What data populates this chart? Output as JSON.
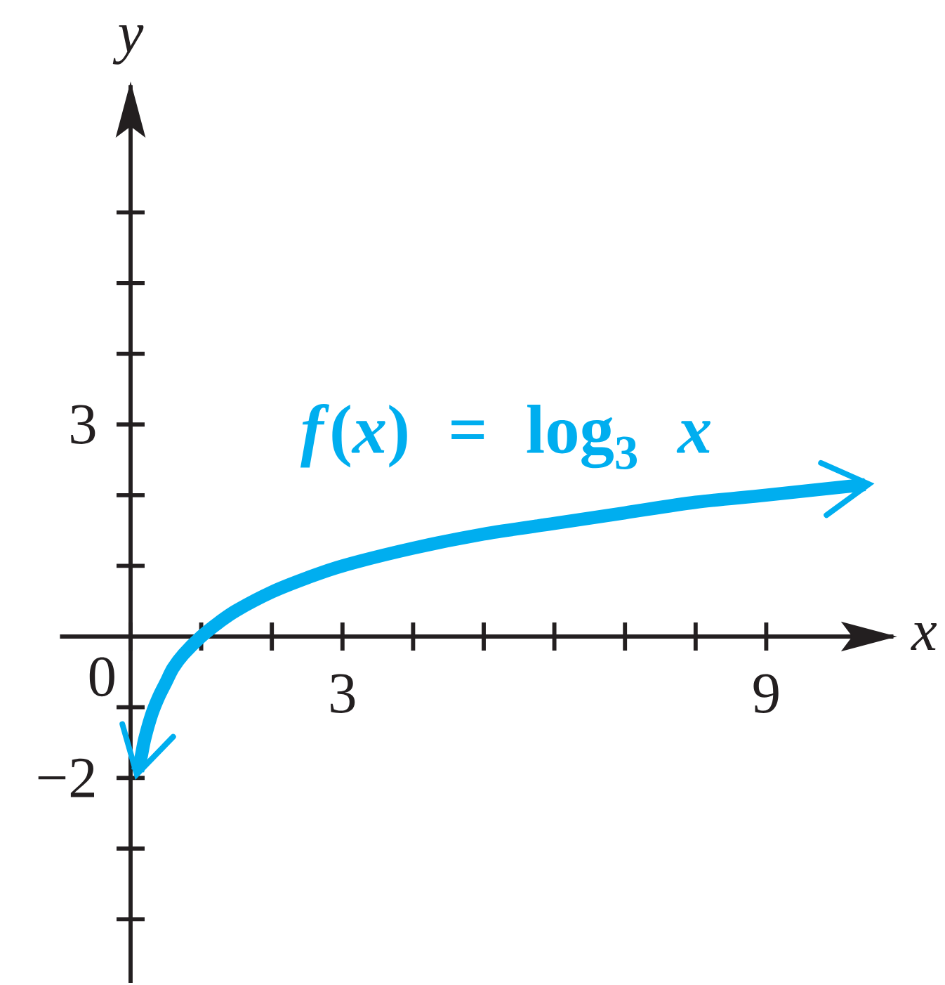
{
  "chart_data": {
    "type": "line",
    "xlabel": "x",
    "ylabel": "y",
    "x": [
      0.1,
      0.15,
      0.2,
      0.3,
      0.4,
      0.5,
      0.6,
      0.75,
      1,
      1.25,
      1.5,
      2,
      2.5,
      3,
      4,
      5,
      6,
      7,
      8,
      9,
      10.4
    ],
    "series": [
      {
        "name": "*f*(*x*) = log$_{3}$ *x*",
        "color": "#00aeef",
        "values": [
          -1.9,
          -1.7,
          -1.45,
          -1.1,
          -0.85,
          -0.65,
          -0.45,
          -0.25,
          0,
          0.2,
          0.37,
          0.63,
          0.83,
          1,
          1.25,
          1.45,
          1.6,
          1.75,
          1.9,
          2,
          2.15
        ]
      }
    ],
    "xlim": [
      -1,
      10.8
    ],
    "ylim": [
      -4.9,
      7.8
    ],
    "xticks": [
      0,
      {
        "value": 1,
        "label": null
      },
      {
        "value": 2,
        "label": null
      },
      3,
      {
        "value": 4,
        "label": null
      },
      {
        "value": 5,
        "label": null
      },
      {
        "value": 6,
        "label": null
      },
      {
        "value": 7,
        "label": null
      },
      {
        "value": 8,
        "label": null
      },
      9
    ],
    "yticks": [
      {
        "value": -4,
        "label": null
      },
      {
        "value": -3,
        "label": null
      },
      {
        "value": -2,
        "label": "−2"
      },
      {
        "value": -1,
        "label": null
      },
      {
        "value": 1,
        "label": null
      },
      {
        "value": 2,
        "label": null
      },
      3,
      {
        "value": 4,
        "label": null
      },
      {
        "value": 5,
        "label": null
      },
      {
        "value": 6,
        "label": null
      }
    ],
    "marker": "none",
    "line_style": "solid"
  }
}
